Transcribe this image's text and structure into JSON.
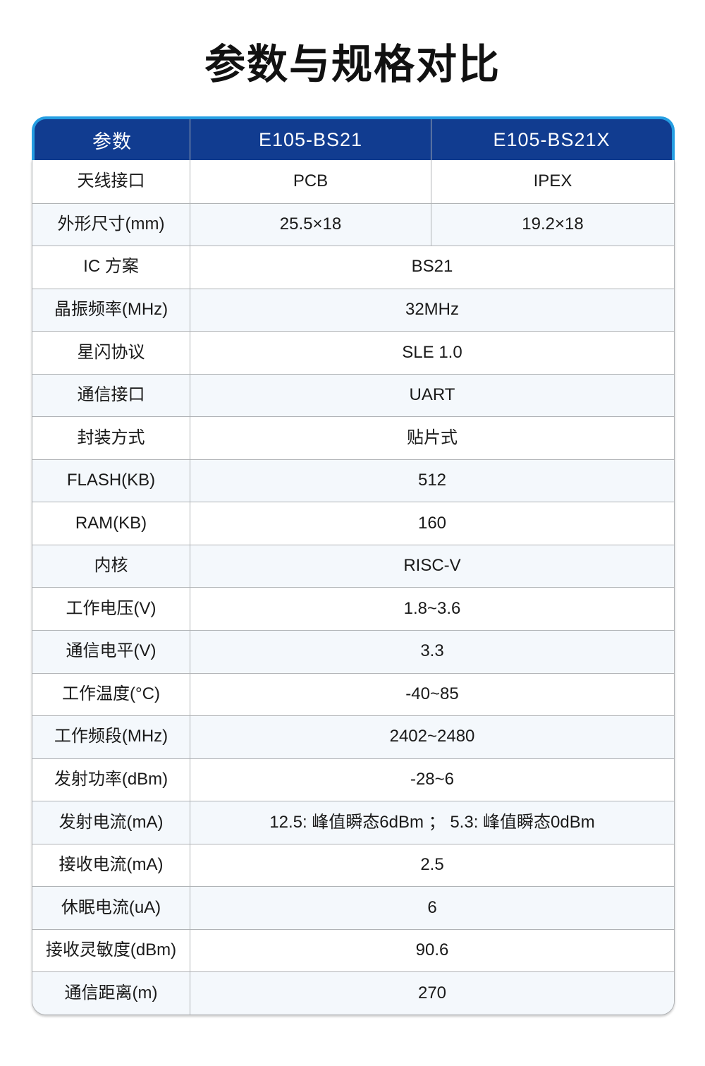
{
  "page_title": "参数与规格对比",
  "colors": {
    "header_bg": "#113c90",
    "header_frame": "#259ee2",
    "grid_line": "#b0b3b6",
    "alt_row_bg": "#f4f8fc",
    "body_text": "#1a1a1a",
    "header_text": "#ffffff"
  },
  "table": {
    "headers": [
      "参数",
      "E105-BS21",
      "E105-BS21X"
    ],
    "rows": [
      {
        "label": "天线接口",
        "values": [
          "PCB",
          "IPEX"
        ]
      },
      {
        "label": "外形尺寸(mm)",
        "values": [
          "25.5×18",
          "19.2×18"
        ]
      },
      {
        "label": "IC 方案",
        "values": [
          "BS21"
        ]
      },
      {
        "label": "晶振频率(MHz)",
        "values": [
          "32MHz"
        ]
      },
      {
        "label": "星闪协议",
        "values": [
          "SLE 1.0"
        ]
      },
      {
        "label": "通信接口",
        "values": [
          "UART"
        ]
      },
      {
        "label": "封装方式",
        "values": [
          "贴片式"
        ]
      },
      {
        "label": "FLASH(KB)",
        "values": [
          "512"
        ]
      },
      {
        "label": "RAM(KB)",
        "values": [
          "160"
        ]
      },
      {
        "label": "内核",
        "values": [
          "RISC-V"
        ]
      },
      {
        "label": "工作电压(V)",
        "values": [
          "1.8~3.6"
        ]
      },
      {
        "label": "通信电平(V)",
        "values": [
          "3.3"
        ]
      },
      {
        "label": "工作温度(°C)",
        "values": [
          "-40~85"
        ]
      },
      {
        "label": "工作频段(MHz)",
        "values": [
          "2402~2480"
        ]
      },
      {
        "label": "发射功率(dBm)",
        "values": [
          "-28~6"
        ]
      },
      {
        "label": "发射电流(mA)",
        "values": [
          "12.5: 峰值瞬态6dBm ； 5.3: 峰值瞬态0dBm"
        ]
      },
      {
        "label": "接收电流(mA)",
        "values": [
          "2.5"
        ]
      },
      {
        "label": "休眠电流(uA)",
        "values": [
          "6"
        ]
      },
      {
        "label": "接收灵敏度(dBm)",
        "values": [
          "90.6"
        ]
      },
      {
        "label": "通信距离(m)",
        "values": [
          "270"
        ]
      }
    ]
  }
}
